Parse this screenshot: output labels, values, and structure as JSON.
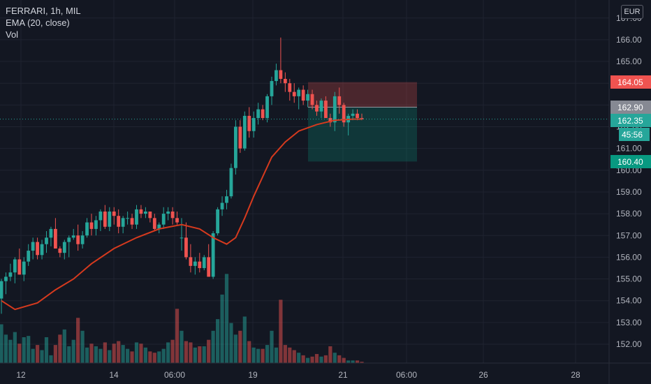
{
  "legend": {
    "symbol_line": "FERRARI, 1h, MIL",
    "ema_line": "EMA (20, close)",
    "vol_line": "Vol"
  },
  "currency": "EUR",
  "colors": {
    "background": "#131722",
    "up": "#26a69a",
    "down": "#ef5350",
    "ema": "#d63a1e",
    "grid": "#1f2330",
    "axis_text": "#b2b5be"
  },
  "price_badges": {
    "stop": "164.05",
    "entry": "162.90",
    "last": "162.35",
    "countdown": "45:56",
    "target": "160.40"
  },
  "chart_data": {
    "type": "candlestick",
    "y_axis_ticks": [
      "152.00",
      "153.00",
      "154.00",
      "155.00",
      "156.00",
      "157.00",
      "158.00",
      "159.00",
      "160.00",
      "161.00",
      "162.00",
      "163.00",
      "164.00",
      "165.00",
      "166.00",
      "167.00"
    ],
    "x_axis_ticks": [
      "12",
      "14",
      "06:00",
      "19",
      "21",
      "06:00",
      "26",
      "28"
    ],
    "last_price": 162.35,
    "position": {
      "stop": 164.05,
      "entry": 162.9,
      "target": 160.4
    },
    "candles": [
      [
        154.1,
        155.0,
        153.4,
        154.9,
        3
      ],
      [
        154.9,
        155.3,
        154.3,
        155.1,
        2.2
      ],
      [
        155.1,
        155.7,
        154.9,
        155.3,
        1.8
      ],
      [
        155.3,
        156.0,
        154.8,
        155.9,
        2.4
      ],
      [
        155.9,
        156.4,
        155.2,
        155.2,
        1.5
      ],
      [
        155.2,
        156.0,
        154.9,
        155.8,
        2
      ],
      [
        155.8,
        156.6,
        155.6,
        156.3,
        2.1
      ],
      [
        156.3,
        156.9,
        155.9,
        156.7,
        1.1
      ],
      [
        156.7,
        156.9,
        155.9,
        156.1,
        1.4
      ],
      [
        156.1,
        156.8,
        155.9,
        156.6,
        1
      ],
      [
        156.6,
        157.2,
        156.2,
        156.9,
        2
      ],
      [
        156.9,
        157.4,
        156.5,
        157.3,
        0.6
      ],
      [
        157.3,
        157.8,
        156.4,
        156.4,
        1.4
      ],
      [
        156.4,
        156.5,
        156.0,
        156.2,
        2.2
      ],
      [
        156.2,
        156.8,
        155.9,
        156.7,
        2.6
      ],
      [
        156.7,
        157.0,
        156.0,
        156.9,
        1.3
      ],
      [
        156.9,
        157.3,
        156.8,
        157.0,
        1.8
      ],
      [
        157.0,
        157.5,
        156.3,
        156.6,
        3.5
      ],
      [
        156.6,
        157.2,
        156.4,
        157.0,
        2.5
      ],
      [
        157.0,
        157.8,
        156.9,
        157.6,
        1.2
      ],
      [
        157.6,
        158.0,
        157.0,
        157.3,
        1.5
      ],
      [
        157.3,
        157.9,
        157.0,
        157.7,
        1.3
      ],
      [
        157.7,
        158.2,
        157.2,
        158.1,
        1.1
      ],
      [
        158.1,
        158.4,
        157.3,
        157.4,
        1.6
      ],
      [
        157.4,
        158.3,
        157.2,
        158.1,
        1
      ],
      [
        158.1,
        158.3,
        157.5,
        157.9,
        1.5
      ],
      [
        157.9,
        158.2,
        157.1,
        157.4,
        1.7
      ],
      [
        157.4,
        157.9,
        157.1,
        157.8,
        1.4
      ],
      [
        157.8,
        158.1,
        157.5,
        157.8,
        1.1
      ],
      [
        157.8,
        158.0,
        157.3,
        157.5,
        0.9
      ],
      [
        157.5,
        158.4,
        157.3,
        158.2,
        1.6
      ],
      [
        158.2,
        158.4,
        157.8,
        158.0,
        1.5
      ],
      [
        158.0,
        158.3,
        157.8,
        158.1,
        1.2
      ],
      [
        158.1,
        158.1,
        157.6,
        157.8,
        0.9
      ],
      [
        157.8,
        158.0,
        157.2,
        157.3,
        0.8
      ],
      [
        157.3,
        157.6,
        157.1,
        157.5,
        0.9
      ],
      [
        157.5,
        158.3,
        157.3,
        158.0,
        1.1
      ],
      [
        158.0,
        158.3,
        157.7,
        158.1,
        1.6
      ],
      [
        158.1,
        158.3,
        157.5,
        157.8,
        1.8
      ],
      [
        157.8,
        158.1,
        157.5,
        157.6,
        4.2
      ],
      [
        156.9,
        157.8,
        156.3,
        156.9,
        2.5
      ],
      [
        156.9,
        157.6,
        155.9,
        156.0,
        1.7
      ],
      [
        156.0,
        156.6,
        155.3,
        155.6,
        1.6
      ],
      [
        155.6,
        156.0,
        155.2,
        155.8,
        1.2
      ],
      [
        155.8,
        156.2,
        155.3,
        155.5,
        1.3
      ],
      [
        155.5,
        156.1,
        155.4,
        156.0,
        1.3
      ],
      [
        156.0,
        156.6,
        155.1,
        155.1,
        1.8
      ],
      [
        155.1,
        157.2,
        155.0,
        157.1,
        2.5
      ],
      [
        157.1,
        158.3,
        157.0,
        158.2,
        3.4
      ],
      [
        158.2,
        158.8,
        157.9,
        158.5,
        5.3
      ],
      [
        158.5,
        159.1,
        158.2,
        158.8,
        6.9
      ],
      [
        158.8,
        160.3,
        158.7,
        160.1,
        3.1
      ],
      [
        160.1,
        162.3,
        159.8,
        162.0,
        2.2
      ],
      [
        162.0,
        162.3,
        160.8,
        161.0,
        2.5
      ],
      [
        161.0,
        162.7,
        160.9,
        162.5,
        3.6
      ],
      [
        162.5,
        162.9,
        161.5,
        161.8,
        1.7
      ],
      [
        161.8,
        162.7,
        161.5,
        162.4,
        1.2
      ],
      [
        162.4,
        163.1,
        162.1,
        162.8,
        1.1
      ],
      [
        162.8,
        163.0,
        162.3,
        162.4,
        1.1
      ],
      [
        162.4,
        163.5,
        162.2,
        163.4,
        1.4
      ],
      [
        163.4,
        164.3,
        163.0,
        164.1,
        2.5
      ],
      [
        164.1,
        164.9,
        163.9,
        164.6,
        1.2
      ],
      [
        164.6,
        166.1,
        164.0,
        164.2,
        4.9
      ],
      [
        164.2,
        164.5,
        163.6,
        164.0,
        1.4
      ],
      [
        164.0,
        164.2,
        163.2,
        163.6,
        1.2
      ],
      [
        163.6,
        164.0,
        163.1,
        163.4,
        1
      ],
      [
        163.4,
        163.8,
        162.8,
        163.7,
        0.8
      ],
      [
        163.7,
        163.9,
        163.0,
        163.2,
        0.6
      ],
      [
        163.2,
        163.7,
        162.9,
        163.5,
        0.4
      ],
      [
        163.5,
        163.7,
        162.8,
        163.0,
        0.5
      ],
      [
        163.0,
        163.2,
        162.5,
        162.7,
        0.7
      ],
      [
        162.7,
        163.3,
        162.4,
        163.2,
        0.5
      ],
      [
        163.2,
        163.4,
        162.4,
        162.4,
        0.6
      ],
      [
        162.4,
        162.6,
        162.0,
        162.2,
        1.3
      ],
      [
        162.2,
        163.6,
        161.8,
        163.4,
        0.8
      ],
      [
        163.4,
        163.8,
        162.6,
        163.0,
        0.6
      ],
      [
        163.0,
        163.1,
        162.0,
        162.2,
        0.4
      ],
      [
        162.2,
        162.6,
        161.6,
        162.5,
        0.2
      ],
      [
        162.5,
        162.8,
        162.3,
        162.6,
        0.2
      ],
      [
        162.6,
        162.8,
        162.3,
        162.4,
        0.2
      ],
      [
        162.4,
        162.6,
        162.3,
        162.35,
        0.1
      ]
    ],
    "ema_20": [
      [
        0,
        154.0
      ],
      [
        3,
        153.6
      ],
      [
        8,
        153.9
      ],
      [
        12,
        154.5
      ],
      [
        16,
        155.0
      ],
      [
        20,
        155.7
      ],
      [
        25,
        156.4
      ],
      [
        30,
        156.9
      ],
      [
        35,
        157.3
      ],
      [
        40,
        157.5
      ],
      [
        44,
        157.3
      ],
      [
        47,
        156.9
      ],
      [
        50,
        156.6
      ],
      [
        52,
        156.9
      ],
      [
        54,
        157.8
      ],
      [
        56,
        158.8
      ],
      [
        58,
        159.7
      ],
      [
        60,
        160.6
      ],
      [
        63,
        161.3
      ],
      [
        66,
        161.8
      ],
      [
        70,
        162.1
      ],
      [
        74,
        162.3
      ],
      [
        78,
        162.35
      ],
      [
        80,
        162.35
      ]
    ]
  }
}
